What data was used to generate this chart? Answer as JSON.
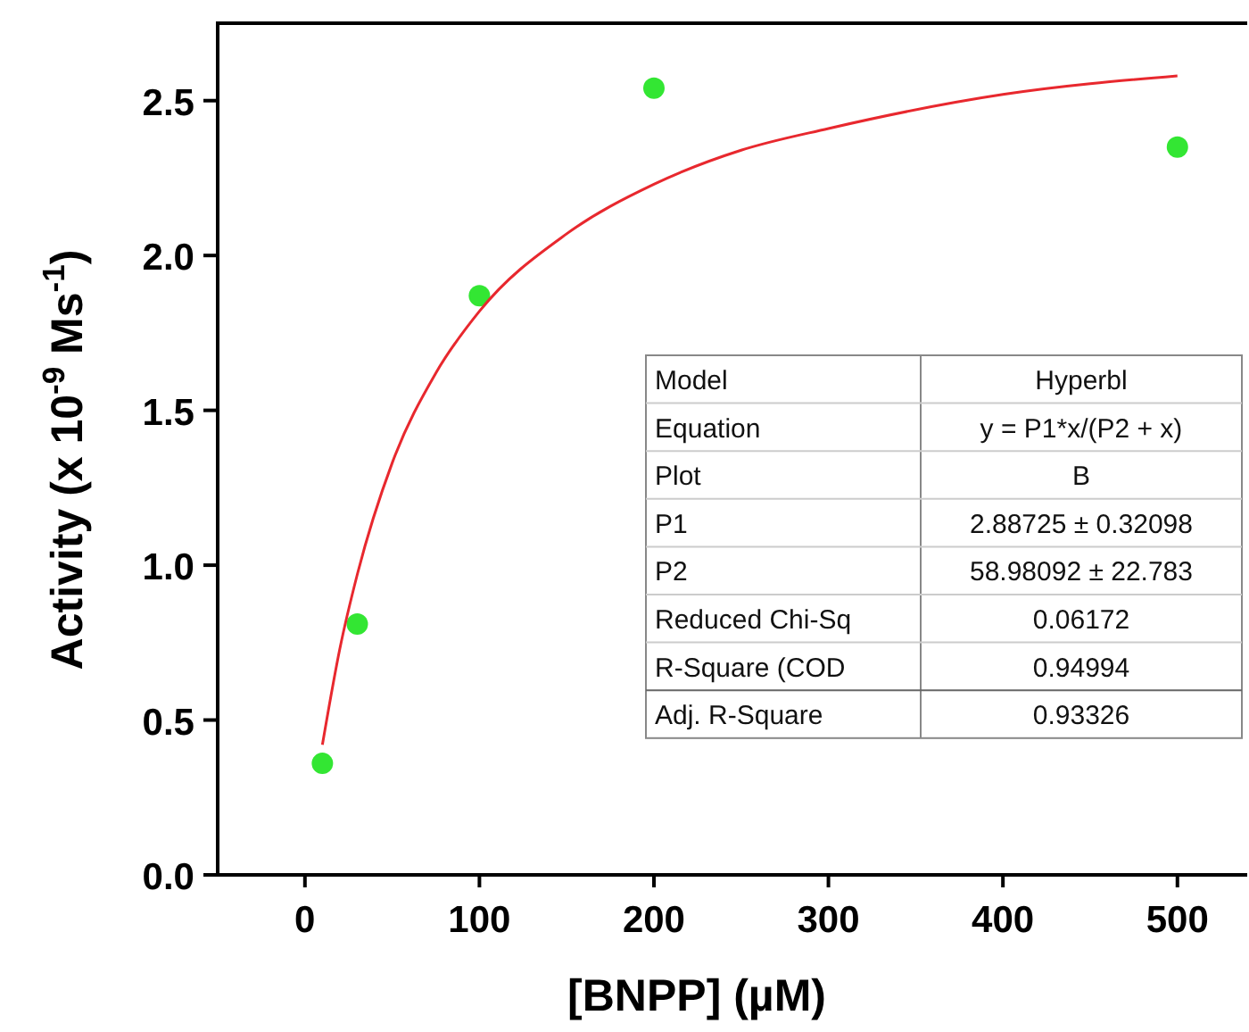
{
  "chart_data": {
    "type": "scatter",
    "xlabel": "[BNPP] (µM)",
    "ylabel": "Activity (x 10$^{-9}$ Ms$^{-1}$)",
    "xlim": [
      -50,
      540
    ],
    "xticks": [
      0,
      100,
      200,
      300,
      400,
      500
    ],
    "ylim": [
      0,
      2.75
    ],
    "yticks": [
      {
        "value": 0,
        "label": "0.0"
      },
      0.5,
      {
        "value": 1,
        "label": "1.0"
      },
      1.5,
      {
        "value": 2,
        "label": "2.0"
      },
      2.5
    ],
    "grid": false,
    "marker": "circle",
    "series": [
      {
        "color": "#33e633",
        "x": [
          10,
          30,
          100,
          200,
          500
        ],
        "values": [
          0.36,
          0.81,
          1.87,
          2.54,
          2.35
        ]
      },
      {
        "type": "line",
        "color": "#e8282e",
        "marker": "none",
        "x": [
          10,
          20,
          30,
          50,
          75,
          100,
          150,
          200,
          250,
          300,
          400,
          500
        ],
        "values": [
          0.42,
          0.73,
          0.97,
          1.33,
          1.62,
          1.82,
          2.07,
          2.23,
          2.34,
          2.41,
          2.52,
          2.58
        ]
      }
    ],
    "annotations": [
      "Model",
      "Hyperbl",
      "Equation",
      "y = P1*x/(P2 + x)",
      "Plot",
      "B",
      "P1",
      "2.88725 ± 0.32098",
      "P2",
      "58.98092 ± 22.783",
      "Reduced Chi-Sq",
      "0.06172",
      "R-Square (COD",
      "0.94994",
      "Adj. R-Square",
      "0.93326"
    ]
  }
}
